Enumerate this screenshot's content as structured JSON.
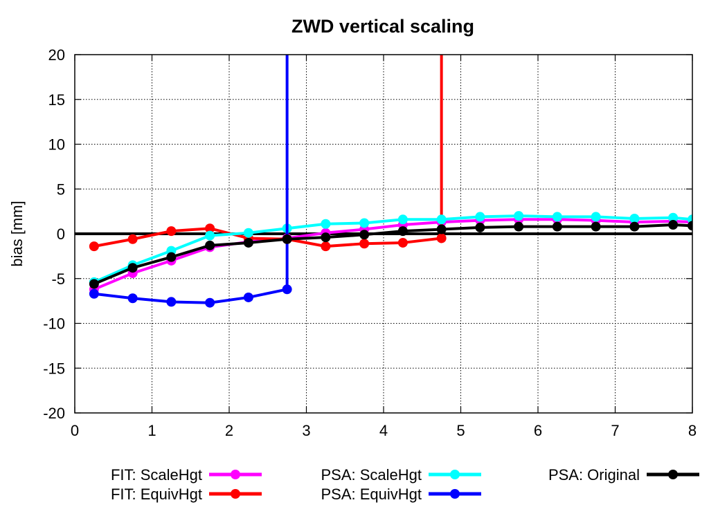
{
  "chart_data": {
    "type": "line",
    "title": "ZWD vertical scaling",
    "xlabel": "",
    "ylabel": "bias [mm]",
    "xlim": [
      0,
      8
    ],
    "ylim": [
      -20,
      20
    ],
    "xticks": [
      0,
      1,
      2,
      3,
      4,
      5,
      6,
      7,
      8
    ],
    "yticks": [
      -20,
      -15,
      -10,
      -5,
      0,
      5,
      10,
      15,
      20
    ],
    "grid": true,
    "zero_line": true,
    "legend_position": "bottom",
    "series": [
      {
        "name": "FIT: ScaleHgt",
        "color": "#ff00ff",
        "x": [
          0.25,
          0.75,
          1.25,
          1.75,
          2.25,
          2.75,
          3.25,
          3.75,
          4.25,
          4.75,
          5.25,
          5.75,
          6.25,
          6.75,
          7.25,
          7.75,
          8.0
        ],
        "y": [
          -6.2,
          -4.4,
          -3.0,
          -1.5,
          -0.9,
          -0.5,
          0.1,
          0.5,
          1.0,
          1.3,
          1.5,
          1.6,
          1.6,
          1.5,
          1.3,
          1.4,
          1.3
        ]
      },
      {
        "name": "FIT: EquivHgt",
        "color": "#ff0000",
        "x": [
          0.25,
          0.75,
          1.25,
          1.75,
          2.25,
          2.75,
          3.25,
          3.75,
          4.25,
          4.75,
          4.75
        ],
        "y": [
          -1.4,
          -0.6,
          0.3,
          0.6,
          -0.5,
          -0.6,
          -1.4,
          -1.1,
          -1.0,
          -0.5,
          20
        ],
        "line_only_last": true
      },
      {
        "name": "PSA: ScaleHgt",
        "color": "#00ffff",
        "x": [
          0.25,
          0.75,
          1.25,
          1.75,
          2.25,
          2.75,
          3.25,
          3.75,
          4.25,
          4.75,
          5.25,
          5.75,
          6.25,
          6.75,
          7.25,
          7.75,
          8.0
        ],
        "y": [
          -5.4,
          -3.5,
          -1.9,
          -0.2,
          0.1,
          0.6,
          1.1,
          1.2,
          1.6,
          1.6,
          1.9,
          2.0,
          1.9,
          1.9,
          1.7,
          1.8,
          1.6
        ]
      },
      {
        "name": "PSA: EquivHgt",
        "color": "#0000ff",
        "x": [
          0.25,
          0.75,
          1.25,
          1.75,
          2.25,
          2.75,
          2.75
        ],
        "y": [
          -6.7,
          -7.2,
          -7.6,
          -7.7,
          -7.1,
          -6.2,
          20
        ],
        "line_only_last": true
      },
      {
        "name": "PSA: Original",
        "color": "#000000",
        "x": [
          0.25,
          0.75,
          1.25,
          1.75,
          2.25,
          2.75,
          3.25,
          3.75,
          4.25,
          4.75,
          5.25,
          5.75,
          6.25,
          6.75,
          7.25,
          7.75,
          8.0
        ],
        "y": [
          -5.6,
          -3.8,
          -2.6,
          -1.3,
          -1.0,
          -0.6,
          -0.4,
          -0.1,
          0.3,
          0.5,
          0.7,
          0.8,
          0.8,
          0.8,
          0.8,
          1.0,
          0.9
        ]
      }
    ]
  }
}
